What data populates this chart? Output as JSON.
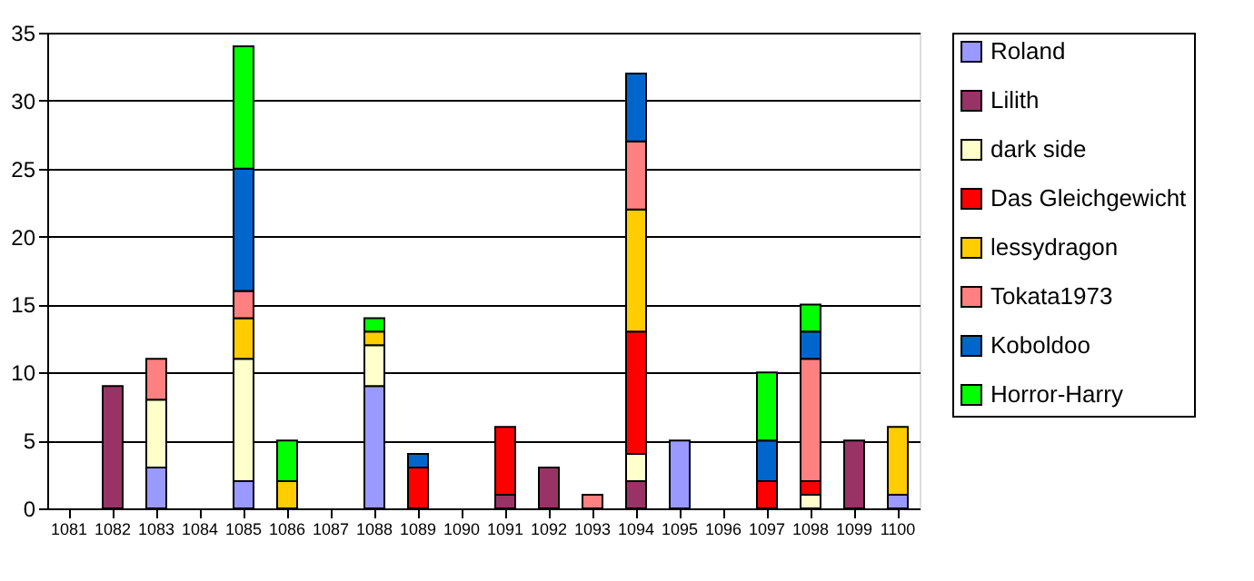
{
  "chart_data": {
    "type": "bar",
    "stacked": true,
    "categories": [
      "1081",
      "1082",
      "1083",
      "1084",
      "1085",
      "1086",
      "1087",
      "1088",
      "1089",
      "1090",
      "1091",
      "1092",
      "1093",
      "1094",
      "1095",
      "1096",
      "1097",
      "1098",
      "1099",
      "1100"
    ],
    "series": [
      {
        "name": "Roland",
        "color": "#9999ff",
        "values": [
          null,
          null,
          3,
          null,
          2,
          null,
          null,
          9,
          null,
          null,
          null,
          null,
          null,
          null,
          5,
          null,
          null,
          null,
          null,
          1
        ]
      },
      {
        "name": "Lilith",
        "color": "#993366",
        "values": [
          null,
          9,
          null,
          null,
          null,
          null,
          null,
          null,
          null,
          null,
          1,
          3,
          null,
          2,
          null,
          null,
          null,
          null,
          5,
          null
        ]
      },
      {
        "name": "dark side",
        "color": "#ffffcc",
        "values": [
          null,
          null,
          5,
          null,
          9,
          null,
          null,
          3,
          null,
          null,
          null,
          null,
          null,
          2,
          null,
          null,
          null,
          1,
          null,
          null
        ]
      },
      {
        "name": "Das Gleichgewicht",
        "color": "#ff0000",
        "values": [
          null,
          null,
          null,
          null,
          null,
          null,
          null,
          null,
          3,
          null,
          5,
          null,
          null,
          9,
          null,
          null,
          2,
          1,
          null,
          null
        ]
      },
      {
        "name": "lessydragon",
        "color": "#ffcc00",
        "values": [
          null,
          null,
          null,
          null,
          3,
          2,
          null,
          1,
          null,
          null,
          null,
          null,
          null,
          9,
          null,
          null,
          null,
          null,
          null,
          5
        ]
      },
      {
        "name": "Tokata1973",
        "color": "#ff8080",
        "values": [
          null,
          null,
          3,
          null,
          2,
          null,
          null,
          null,
          null,
          null,
          null,
          null,
          1,
          5,
          null,
          null,
          null,
          9,
          null,
          null
        ]
      },
      {
        "name": "Koboldoo",
        "color": "#0066cc",
        "values": [
          null,
          null,
          null,
          null,
          9,
          null,
          null,
          null,
          1,
          null,
          null,
          null,
          null,
          5,
          null,
          null,
          3,
          2,
          null,
          null
        ]
      },
      {
        "name": "Horror-Harry",
        "color": "#00ff00",
        "values": [
          null,
          null,
          null,
          null,
          9,
          3,
          null,
          1,
          null,
          null,
          null,
          null,
          null,
          null,
          null,
          null,
          5,
          2,
          null,
          null
        ]
      }
    ],
    "ylim": [
      0,
      35
    ],
    "yticks": [
      0,
      5,
      10,
      15,
      20,
      25,
      30,
      35
    ],
    "grid": "y",
    "legend": "right"
  }
}
